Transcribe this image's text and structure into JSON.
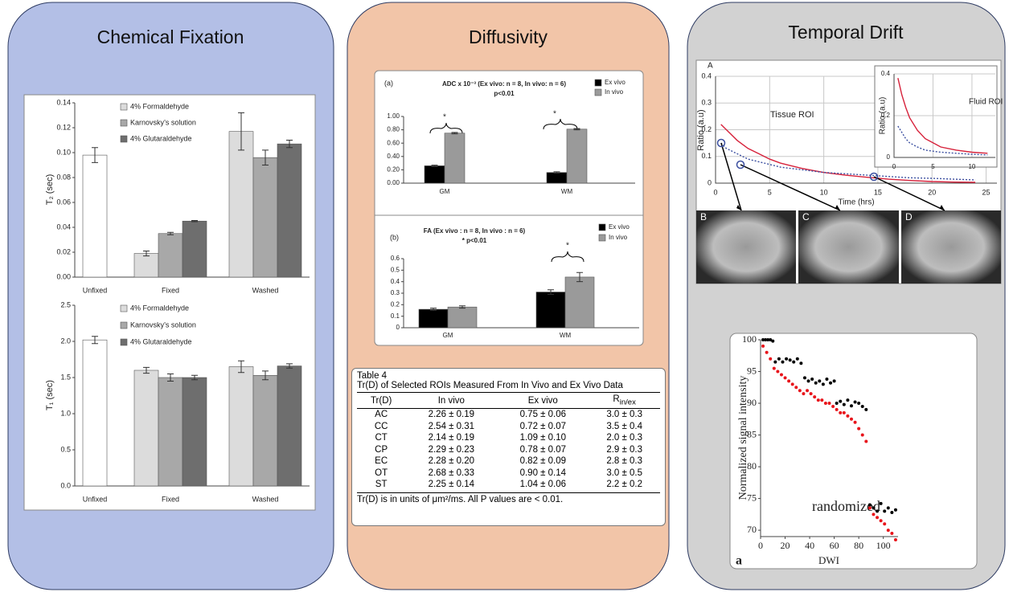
{
  "panels": [
    {
      "title": "Chemical Fixation"
    },
    {
      "title": "Diffusivity"
    },
    {
      "title": "Temporal Drift"
    }
  ],
  "chart_data": [
    {
      "type": "bar",
      "y_label": "T₂ (sec)",
      "categories": [
        "Unfixed",
        "Fixed",
        "Washed"
      ],
      "series": [
        {
          "color": "#ffffff",
          "values": [
            0.098,
            null,
            null
          ],
          "errors": [
            0.006,
            null,
            null
          ]
        },
        {
          "name": "4% Formaldehyde",
          "color": "#dcdcdc",
          "values": [
            null,
            0.019,
            0.117
          ],
          "errors": [
            null,
            0.002,
            0.015
          ]
        },
        {
          "name": "Karnovsky’s solution",
          "color": "#a8a8a8",
          "values": [
            null,
            0.035,
            0.096
          ],
          "errors": [
            null,
            0.001,
            0.006
          ]
        },
        {
          "name": "4% Glutaraldehyde",
          "color": "#6e6e6e",
          "values": [
            null,
            0.045,
            0.107
          ],
          "errors": [
            null,
            0.0005,
            0.003
          ]
        }
      ],
      "ylim": [
        0,
        0.14
      ],
      "yticks": [
        {
          "value": 0,
          "label": "0.00"
        },
        0.02,
        0.04,
        0.06,
        0.08,
        {
          "value": 0.1,
          "label": "0.10"
        },
        0.12,
        0.14
      ],
      "grid": false
    },
    {
      "type": "bar",
      "y_label": "T₁ (sec)",
      "categories": [
        "Unfixed",
        "Fixed",
        "Washed"
      ],
      "series": [
        {
          "color": "#ffffff",
          "values": [
            2.02,
            null,
            null
          ],
          "errors": [
            0.05,
            null,
            null
          ]
        },
        {
          "name": "4% Formaldehyde",
          "color": "#dcdcdc",
          "values": [
            null,
            1.6,
            1.65
          ],
          "errors": [
            null,
            0.04,
            0.08
          ]
        },
        {
          "name": "Karnovsky’s solution",
          "color": "#a8a8a8",
          "values": [
            null,
            1.5,
            1.53
          ],
          "errors": [
            null,
            0.05,
            0.06
          ]
        },
        {
          "name": "4% Glutaraldehyde",
          "color": "#6e6e6e",
          "values": [
            null,
            1.5,
            1.66
          ],
          "errors": [
            null,
            0.03,
            0.03
          ]
        }
      ],
      "ylim": [
        0,
        2.5
      ],
      "yticks": [
        {
          "value": 0,
          "label": "0.0"
        },
        0.5,
        {
          "value": 1,
          "label": "1.0"
        },
        1.5,
        {
          "value": 2,
          "label": "2.0"
        },
        2.5
      ],
      "grid": false
    },
    {
      "type": "bar",
      "panel_label": "(a)",
      "title": "ADC x 10⁻³ (Ex vivo: n = 8, In vivo: n = 6)",
      "subtitle": "p<0.01",
      "categories": [
        "GM",
        "WM"
      ],
      "series": [
        {
          "name": "Ex vivo",
          "color": "#000000",
          "values": [
            0.26,
            0.16
          ],
          "errors": [
            0.01,
            0.01
          ]
        },
        {
          "name": "In vivo",
          "color": "#9a9a9a",
          "values": [
            0.75,
            0.81
          ],
          "errors": [
            0.01,
            0.01
          ]
        }
      ],
      "annotations": [
        "*",
        "*"
      ],
      "ylim": [
        0,
        1
      ],
      "yticks": [
        {
          "value": 0,
          "label": "0.00"
        },
        {
          "value": 0.2,
          "label": "0.20"
        },
        {
          "value": 0.4,
          "label": "0.40"
        },
        {
          "value": 0.6,
          "label": "0.60"
        },
        {
          "value": 0.8,
          "label": "0.80"
        },
        {
          "value": 1,
          "label": "1.00"
        }
      ],
      "grid": false
    },
    {
      "type": "bar",
      "panel_label": "(b)",
      "title": "FA (Ex vivo : n = 8, In vivo : n = 6)",
      "subtitle": "* p<0.01",
      "categories": [
        "GM",
        "WM"
      ],
      "series": [
        {
          "name": "Ex vivo",
          "color": "#000000",
          "values": [
            0.16,
            0.31
          ],
          "errors": [
            0.01,
            0.02
          ]
        },
        {
          "name": "In vivo",
          "color": "#9a9a9a",
          "values": [
            0.18,
            0.44
          ],
          "errors": [
            0.01,
            0.04
          ]
        }
      ],
      "annotations": [
        "*"
      ],
      "ylim": [
        0,
        0.6
      ],
      "yticks": [
        0,
        0.1,
        0.2,
        0.3,
        0.4,
        0.5,
        0.6
      ],
      "grid": false
    },
    {
      "type": "line",
      "panel_label": "A",
      "x_label": "Time (hrs)",
      "y_label": "Ratio (a.u)",
      "annotations": [
        "Tissue ROI"
      ],
      "x": [
        0.5,
        1,
        2,
        3,
        4,
        5,
        6,
        7,
        8,
        10,
        12,
        14,
        16,
        18,
        20,
        22,
        24
      ],
      "series": [
        {
          "color": "#d6213a",
          "style": "solid",
          "values": [
            0.22,
            0.2,
            0.16,
            0.13,
            0.11,
            0.09,
            0.075,
            0.065,
            0.055,
            0.04,
            0.03,
            0.022,
            0.015,
            0.01,
            0.006,
            0.004,
            0.003
          ]
        },
        {
          "color": "#3b4fa0",
          "style": "dotted",
          "values": [
            0.15,
            0.13,
            0.11,
            0.09,
            0.08,
            0.07,
            0.06,
            0.055,
            0.05,
            0.04,
            0.035,
            0.03,
            0.025,
            0.02,
            0.018,
            0.015,
            0.012
          ]
        }
      ],
      "xlim": [
        0,
        26
      ],
      "xticks": [
        0,
        5,
        10,
        15,
        20,
        25
      ],
      "ylim": [
        0,
        0.4
      ],
      "yticks": [
        0,
        0.1,
        0.2,
        0.3,
        0.4
      ],
      "grid": true
    },
    {
      "type": "line",
      "y_label": "Ratio (a.u)",
      "annotations": [
        "Fluid ROI"
      ],
      "x": [
        0.5,
        1,
        1.5,
        2,
        3,
        4,
        5,
        6,
        8,
        10,
        12
      ],
      "series": [
        {
          "color": "#d6213a",
          "style": "solid",
          "values": [
            0.38,
            0.3,
            0.24,
            0.19,
            0.13,
            0.09,
            0.07,
            0.05,
            0.035,
            0.025,
            0.02
          ]
        },
        {
          "color": "#3b4fa0",
          "style": "dotted",
          "values": [
            0.15,
            0.12,
            0.09,
            0.07,
            0.05,
            0.035,
            0.03,
            0.025,
            0.02,
            0.015,
            0.012
          ]
        }
      ],
      "xlim": [
        0,
        13
      ],
      "xticks": [
        0,
        5,
        10
      ],
      "ylim": [
        0,
        0.4
      ],
      "yticks": [
        0,
        0.2,
        0.4
      ],
      "grid": true
    },
    {
      "type": "scatter",
      "panel_label": "a",
      "x_label": "DWI",
      "y_label": "Normalized signal intensity",
      "annotations": [
        "randomized"
      ],
      "series": [
        {
          "color": "#000000",
          "x": [
            2,
            4,
            6,
            8,
            10,
            12,
            15,
            18,
            21,
            24,
            27,
            30,
            33,
            36,
            39,
            42,
            45,
            48,
            51,
            54,
            57,
            60,
            62,
            65,
            68,
            71,
            74,
            77,
            80,
            83,
            86,
            89,
            92,
            95,
            98,
            101,
            104,
            107,
            110
          ],
          "y": [
            100,
            100,
            100,
            100,
            99.8,
            96.5,
            97,
            96.5,
            97,
            96.8,
            96.5,
            97,
            96.3,
            94,
            93.5,
            93.8,
            93.2,
            93.5,
            93,
            93.8,
            93.2,
            93.5,
            90,
            90.3,
            89.8,
            90.5,
            89.6,
            90.2,
            90,
            89.5,
            89,
            74,
            73.5,
            73,
            74.2,
            73,
            73.5,
            72.8,
            73.2
          ]
        },
        {
          "color": "#e8141b",
          "x": [
            2,
            5,
            8,
            11,
            14,
            17,
            20,
            23,
            26,
            29,
            32,
            35,
            38,
            41,
            44,
            47,
            50,
            53,
            56,
            59,
            62,
            65,
            68,
            71,
            74,
            77,
            80,
            83,
            86,
            89,
            92,
            95,
            98,
            101,
            104,
            107,
            110
          ],
          "y": [
            99,
            98,
            97,
            95.5,
            95,
            94.5,
            94,
            93.5,
            93,
            92.5,
            92,
            91.5,
            92,
            91.5,
            91,
            90.5,
            90.5,
            90,
            90,
            89.5,
            89,
            88.5,
            88.5,
            88,
            87.5,
            87,
            86,
            85,
            84,
            73.5,
            72.5,
            72,
            71.5,
            71,
            70,
            69.5,
            68.5
          ]
        }
      ],
      "xlim": [
        0,
        112
      ],
      "xticks": [
        0,
        20,
        40,
        60,
        80,
        100
      ],
      "ylim": [
        69,
        100
      ],
      "yticks": [
        70,
        75,
        80,
        85,
        90,
        95,
        100
      ],
      "grid": false
    }
  ],
  "image_labels": [
    "B",
    "C",
    "D"
  ],
  "table": {
    "caption": "Table 4",
    "title": "Tr(D) of Selected ROIs Measured From In Vivo and Ex Vivo Data",
    "columns": [
      "Tr(D)",
      "In vivo",
      "Ex vivo",
      "R"
    ],
    "r_subscript": "in/ex",
    "rows": [
      [
        "AC",
        "2.26 ± 0.19",
        "0.75 ± 0.06",
        "3.0 ± 0.3"
      ],
      [
        "CC",
        "2.54 ± 0.31",
        "0.72 ± 0.07",
        "3.5 ± 0.4"
      ],
      [
        "CT",
        "2.14 ± 0.19",
        "1.09 ± 0.10",
        "2.0 ± 0.3"
      ],
      [
        "CP",
        "2.29 ± 0.23",
        "0.78 ± 0.07",
        "2.9 ± 0.3"
      ],
      [
        "EC",
        "2.28 ± 0.20",
        "0.82 ± 0.09",
        "2.8 ± 0.3"
      ],
      [
        "OT",
        "2.68 ± 0.33",
        "0.90 ± 0.14",
        "3.0 ± 0.5"
      ],
      [
        "ST",
        "2.25 ± 0.14",
        "1.04 ± 0.06",
        "2.2 ± 0.2"
      ]
    ],
    "footnote": "Tr(D) is in units of μm²/ms. All P values are < 0.01."
  }
}
